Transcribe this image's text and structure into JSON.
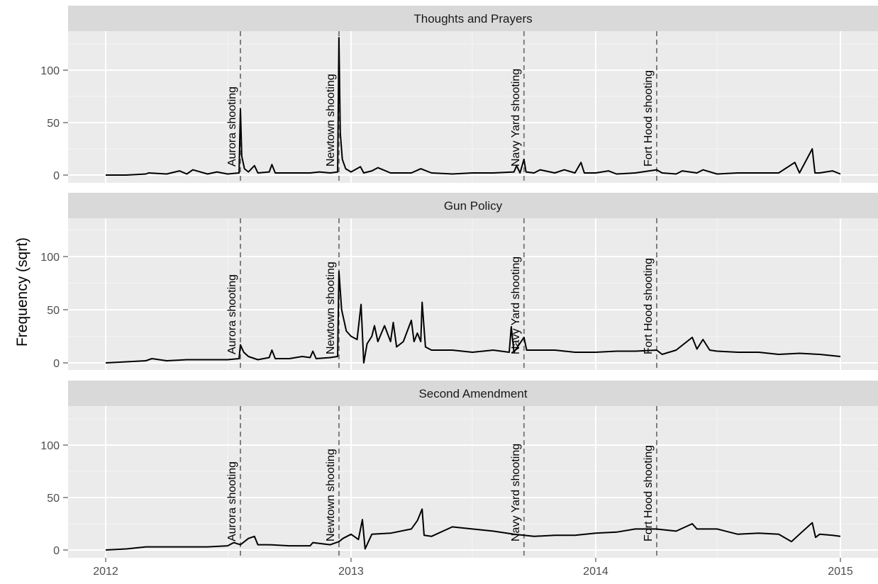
{
  "chart_data": {
    "type": "line",
    "ylabel": "Frequency (sqrt)",
    "xlabel": "",
    "x_ticks": [
      "2012",
      "2013",
      "2014",
      "2015"
    ],
    "y_ticks": [
      0,
      50,
      100
    ],
    "xlim": [
      "2012-01-01",
      "2015-01-01"
    ],
    "ylim": [
      -5,
      135
    ],
    "grid": true,
    "events": [
      {
        "label": "Aurora shooting",
        "date": "2012-07-20"
      },
      {
        "label": "Newtown shooting",
        "date": "2012-12-14"
      },
      {
        "label": "Navy Yard shooting",
        "date": "2013-09-16"
      },
      {
        "label": "Fort Hood shooting",
        "date": "2014-04-02"
      }
    ],
    "panels": [
      {
        "title": "Thoughts and Prayers",
        "points": [
          [
            "2012-01-01",
            0
          ],
          [
            "2012-02-01",
            0
          ],
          [
            "2012-03-01",
            1
          ],
          [
            "2012-03-05",
            2
          ],
          [
            "2012-04-01",
            1
          ],
          [
            "2012-04-20",
            4
          ],
          [
            "2012-05-01",
            1
          ],
          [
            "2012-05-10",
            5
          ],
          [
            "2012-06-01",
            1
          ],
          [
            "2012-06-15",
            3
          ],
          [
            "2012-07-01",
            1
          ],
          [
            "2012-07-18",
            2
          ],
          [
            "2012-07-20",
            63
          ],
          [
            "2012-07-22",
            18
          ],
          [
            "2012-07-26",
            6
          ],
          [
            "2012-08-01",
            3
          ],
          [
            "2012-08-10",
            9
          ],
          [
            "2012-08-15",
            2
          ],
          [
            "2012-09-01",
            3
          ],
          [
            "2012-09-05",
            10
          ],
          [
            "2012-09-10",
            2
          ],
          [
            "2012-10-01",
            2
          ],
          [
            "2012-11-01",
            2
          ],
          [
            "2012-11-15",
            3
          ],
          [
            "2012-12-01",
            2
          ],
          [
            "2012-12-12",
            3
          ],
          [
            "2012-12-14",
            131
          ],
          [
            "2012-12-16",
            40
          ],
          [
            "2012-12-19",
            15
          ],
          [
            "2012-12-24",
            6
          ],
          [
            "2013-01-01",
            3
          ],
          [
            "2013-01-15",
            8
          ],
          [
            "2013-01-20",
            2
          ],
          [
            "2013-02-01",
            4
          ],
          [
            "2013-02-10",
            7
          ],
          [
            "2013-03-01",
            2
          ],
          [
            "2013-04-01",
            2
          ],
          [
            "2013-04-15",
            6
          ],
          [
            "2013-05-01",
            2
          ],
          [
            "2013-06-01",
            1
          ],
          [
            "2013-07-01",
            2
          ],
          [
            "2013-08-01",
            2
          ],
          [
            "2013-09-01",
            3
          ],
          [
            "2013-09-05",
            9
          ],
          [
            "2013-09-10",
            2
          ],
          [
            "2013-09-16",
            15
          ],
          [
            "2013-09-19",
            3
          ],
          [
            "2013-10-01",
            2
          ],
          [
            "2013-10-10",
            5
          ],
          [
            "2013-11-01",
            2
          ],
          [
            "2013-11-15",
            5
          ],
          [
            "2013-12-01",
            2
          ],
          [
            "2013-12-10",
            12
          ],
          [
            "2013-12-15",
            2
          ],
          [
            "2014-01-01",
            2
          ],
          [
            "2014-01-20",
            4
          ],
          [
            "2014-02-01",
            1
          ],
          [
            "2014-03-01",
            2
          ],
          [
            "2014-04-02",
            5
          ],
          [
            "2014-04-10",
            2
          ],
          [
            "2014-05-01",
            1
          ],
          [
            "2014-05-10",
            4
          ],
          [
            "2014-06-01",
            2
          ],
          [
            "2014-06-10",
            5
          ],
          [
            "2014-07-01",
            1
          ],
          [
            "2014-08-01",
            2
          ],
          [
            "2014-09-01",
            2
          ],
          [
            "2014-10-01",
            2
          ],
          [
            "2014-10-25",
            12
          ],
          [
            "2014-11-01",
            2
          ],
          [
            "2014-11-20",
            25
          ],
          [
            "2014-11-24",
            2
          ],
          [
            "2014-12-01",
            2
          ],
          [
            "2014-12-20",
            4
          ],
          [
            "2015-01-01",
            1
          ]
        ]
      },
      {
        "title": "Gun Policy",
        "points": [
          [
            "2012-01-01",
            0
          ],
          [
            "2012-02-01",
            1
          ],
          [
            "2012-03-01",
            2
          ],
          [
            "2012-03-10",
            4
          ],
          [
            "2012-04-01",
            2
          ],
          [
            "2012-05-01",
            3
          ],
          [
            "2012-06-01",
            3
          ],
          [
            "2012-07-01",
            3
          ],
          [
            "2012-07-18",
            4
          ],
          [
            "2012-07-20",
            17
          ],
          [
            "2012-07-25",
            10
          ],
          [
            "2012-08-01",
            6
          ],
          [
            "2012-08-15",
            3
          ],
          [
            "2012-09-01",
            5
          ],
          [
            "2012-09-05",
            12
          ],
          [
            "2012-09-10",
            4
          ],
          [
            "2012-10-01",
            4
          ],
          [
            "2012-10-20",
            6
          ],
          [
            "2012-11-01",
            5
          ],
          [
            "2012-11-05",
            11
          ],
          [
            "2012-11-10",
            4
          ],
          [
            "2012-12-01",
            5
          ],
          [
            "2012-12-12",
            6
          ],
          [
            "2012-12-14",
            86
          ],
          [
            "2012-12-18",
            50
          ],
          [
            "2012-12-25",
            30
          ],
          [
            "2013-01-01",
            25
          ],
          [
            "2013-01-10",
            22
          ],
          [
            "2013-01-16",
            55
          ],
          [
            "2013-01-20",
            0
          ],
          [
            "2013-01-25",
            18
          ],
          [
            "2013-02-01",
            25
          ],
          [
            "2013-02-05",
            35
          ],
          [
            "2013-02-10",
            20
          ],
          [
            "2013-02-20",
            35
          ],
          [
            "2013-03-01",
            20
          ],
          [
            "2013-03-05",
            38
          ],
          [
            "2013-03-10",
            15
          ],
          [
            "2013-03-20",
            20
          ],
          [
            "2013-04-01",
            40
          ],
          [
            "2013-04-05",
            20
          ],
          [
            "2013-04-10",
            28
          ],
          [
            "2013-04-15",
            20
          ],
          [
            "2013-04-17",
            57
          ],
          [
            "2013-04-22",
            15
          ],
          [
            "2013-05-01",
            12
          ],
          [
            "2013-06-01",
            12
          ],
          [
            "2013-07-01",
            10
          ],
          [
            "2013-08-01",
            12
          ],
          [
            "2013-08-25",
            10
          ],
          [
            "2013-08-28",
            34
          ],
          [
            "2013-09-01",
            10
          ],
          [
            "2013-09-16",
            24
          ],
          [
            "2013-09-20",
            12
          ],
          [
            "2013-10-01",
            12
          ],
          [
            "2013-11-01",
            12
          ],
          [
            "2013-12-01",
            10
          ],
          [
            "2014-01-01",
            10
          ],
          [
            "2014-02-01",
            11
          ],
          [
            "2014-03-01",
            11
          ],
          [
            "2014-04-02",
            12
          ],
          [
            "2014-04-10",
            8
          ],
          [
            "2014-05-01",
            12
          ],
          [
            "2014-05-25",
            24
          ],
          [
            "2014-06-01",
            13
          ],
          [
            "2014-06-10",
            22
          ],
          [
            "2014-06-20",
            12
          ],
          [
            "2014-07-01",
            11
          ],
          [
            "2014-08-01",
            10
          ],
          [
            "2014-09-01",
            10
          ],
          [
            "2014-10-01",
            8
          ],
          [
            "2014-11-01",
            9
          ],
          [
            "2014-12-01",
            8
          ],
          [
            "2015-01-01",
            6
          ]
        ]
      },
      {
        "title": "Second Amendment",
        "points": [
          [
            "2012-01-01",
            0
          ],
          [
            "2012-02-01",
            1
          ],
          [
            "2012-03-01",
            3
          ],
          [
            "2012-04-01",
            3
          ],
          [
            "2012-05-01",
            3
          ],
          [
            "2012-06-01",
            3
          ],
          [
            "2012-07-01",
            4
          ],
          [
            "2012-07-10",
            7
          ],
          [
            "2012-07-20",
            5
          ],
          [
            "2012-08-01",
            11
          ],
          [
            "2012-08-10",
            13
          ],
          [
            "2012-08-15",
            5
          ],
          [
            "2012-09-01",
            5
          ],
          [
            "2012-10-01",
            4
          ],
          [
            "2012-11-01",
            4
          ],
          [
            "2012-11-05",
            7
          ],
          [
            "2012-12-01",
            5
          ],
          [
            "2012-12-14",
            8
          ],
          [
            "2012-12-20",
            11
          ],
          [
            "2013-01-01",
            15
          ],
          [
            "2013-01-12",
            10
          ],
          [
            "2013-01-18",
            29
          ],
          [
            "2013-01-22",
            1
          ],
          [
            "2013-02-01",
            15
          ],
          [
            "2013-03-01",
            16
          ],
          [
            "2013-04-01",
            20
          ],
          [
            "2013-04-10",
            28
          ],
          [
            "2013-04-17",
            39
          ],
          [
            "2013-04-20",
            14
          ],
          [
            "2013-05-01",
            13
          ],
          [
            "2013-06-01",
            22
          ],
          [
            "2013-07-01",
            20
          ],
          [
            "2013-08-01",
            18
          ],
          [
            "2013-09-01",
            15
          ],
          [
            "2013-09-16",
            14
          ],
          [
            "2013-10-01",
            13
          ],
          [
            "2013-11-01",
            14
          ],
          [
            "2013-12-01",
            14
          ],
          [
            "2014-01-01",
            16
          ],
          [
            "2014-02-01",
            17
          ],
          [
            "2014-03-01",
            20
          ],
          [
            "2014-04-01",
            20
          ],
          [
            "2014-05-01",
            18
          ],
          [
            "2014-05-25",
            25
          ],
          [
            "2014-06-01",
            20
          ],
          [
            "2014-07-01",
            20
          ],
          [
            "2014-08-01",
            15
          ],
          [
            "2014-09-01",
            16
          ],
          [
            "2014-10-01",
            15
          ],
          [
            "2014-10-20",
            8
          ],
          [
            "2014-11-01",
            15
          ],
          [
            "2014-11-20",
            26
          ],
          [
            "2014-11-25",
            12
          ],
          [
            "2014-12-01",
            15
          ],
          [
            "2014-12-20",
            14
          ],
          [
            "2015-01-01",
            13
          ]
        ]
      }
    ]
  }
}
